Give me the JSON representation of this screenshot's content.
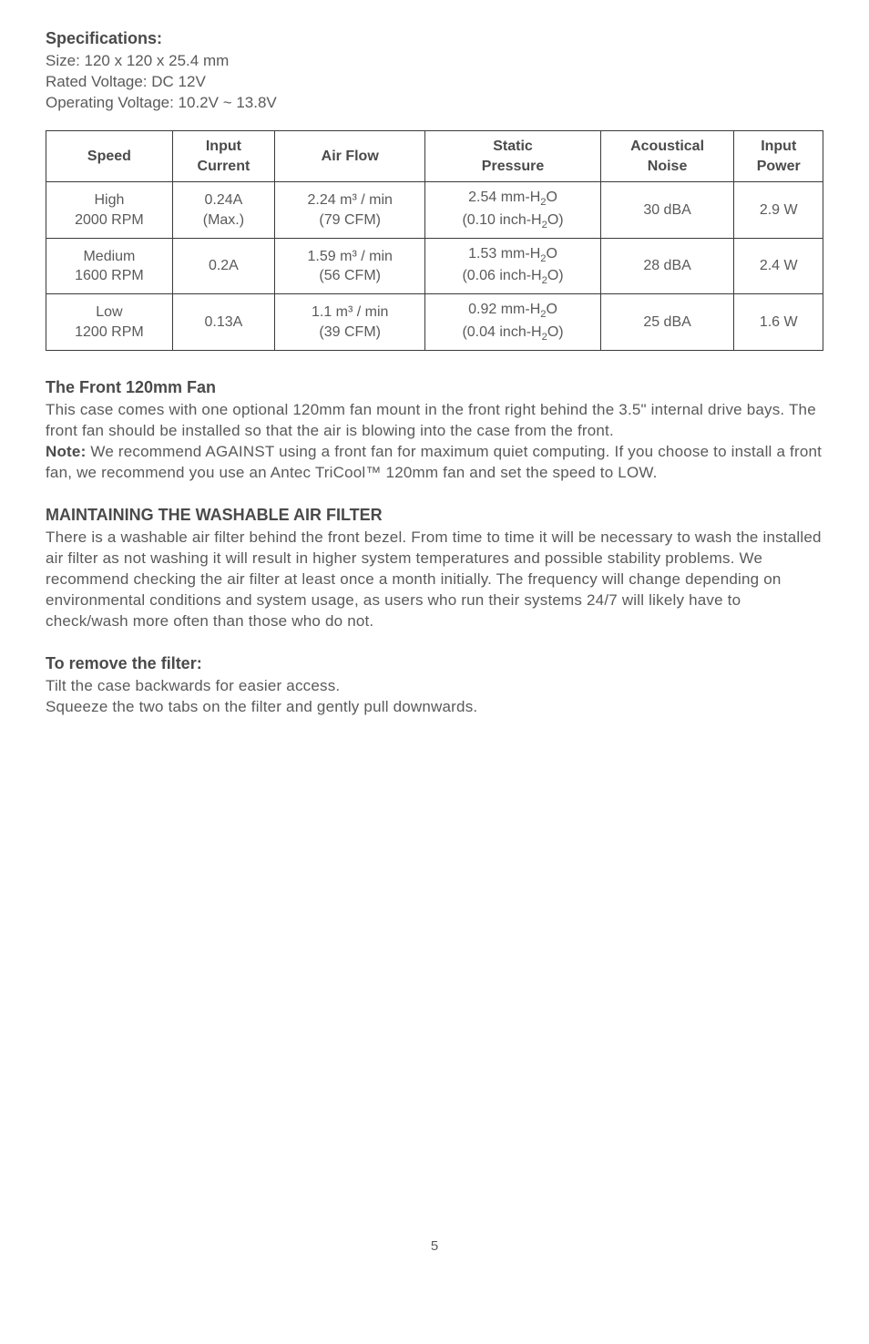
{
  "spec": {
    "title": "Specifications:",
    "size": "Size: 120 x 120 x 25.4 mm",
    "voltage": "Rated Voltage: DC 12V",
    "operating": "Operating Voltage: 10.2V ~ 13.8V"
  },
  "table": {
    "headers": {
      "speed": "Speed",
      "input_current": "Input Current",
      "air_flow": "Air Flow",
      "static_pressure": "Static Pressure",
      "acoustical_noise": "Acoustical Noise",
      "input_power": "Input Power"
    },
    "rows": [
      {
        "speed_l1": "High",
        "speed_l2": "2000 RPM",
        "current_l1": "0.24A",
        "current_l2": "(Max.)",
        "airflow_l1": "2.24 m³ / min",
        "airflow_l2": "(79 CFM)",
        "pressure_l1a": "2.54 mm-H",
        "pressure_l1b": "O",
        "pressure_l2a": "(0.10 inch-H",
        "pressure_l2b": "O)",
        "noise": "30 dBA",
        "power": "2.9 W"
      },
      {
        "speed_l1": "Medium",
        "speed_l2": "1600 RPM",
        "current_l1": "0.2A",
        "current_l2": "",
        "airflow_l1": "1.59 m³ / min",
        "airflow_l2": "(56 CFM)",
        "pressure_l1a": "1.53 mm-H",
        "pressure_l1b": "O",
        "pressure_l2a": "(0.06 inch-H",
        "pressure_l2b": "O)",
        "noise": "28 dBA",
        "power": "2.4 W"
      },
      {
        "speed_l1": "Low",
        "speed_l2": "1200 RPM",
        "current_l1": "0.13A",
        "current_l2": "",
        "airflow_l1": "1.1 m³ / min",
        "airflow_l2": "(39 CFM)",
        "pressure_l1a": "0.92 mm-H",
        "pressure_l1b": "O",
        "pressure_l2a": "(0.04 inch-H",
        "pressure_l2b": "O)",
        "noise": "25 dBA",
        "power": "1.6 W"
      }
    ]
  },
  "front_fan": {
    "title": "The Front 120mm Fan",
    "p1": "This case comes with one optional 120mm fan mount in the front right behind the 3.5\" internal drive bays. The front fan should be installed so that the air is blowing into the case from the front.",
    "note_label": "Note:",
    "note_text": " We recommend AGAINST using a front fan for maximum quiet computing. If you choose to install a front fan, we recommend you use an Antec TriCool™ 120mm fan and set the speed to LOW."
  },
  "filter": {
    "title": "MAINTAINING THE WASHABLE AIR FILTER",
    "body": "There is a washable air filter behind the front bezel. From time to time it will be necessary to wash the installed air filter as not washing it will result in higher system temperatures and possible stability problems. We recommend checking the air filter at least once a month initially. The frequency will change depending on environmental conditions and system usage, as users who run their systems 24/7 will likely have to check/wash more often than those who do not."
  },
  "remove": {
    "title": "To remove the filter:",
    "l1": "Tilt the case backwards for easier access.",
    "l2": "Squeeze the two tabs on the filter and gently pull downwards."
  },
  "page": "5"
}
